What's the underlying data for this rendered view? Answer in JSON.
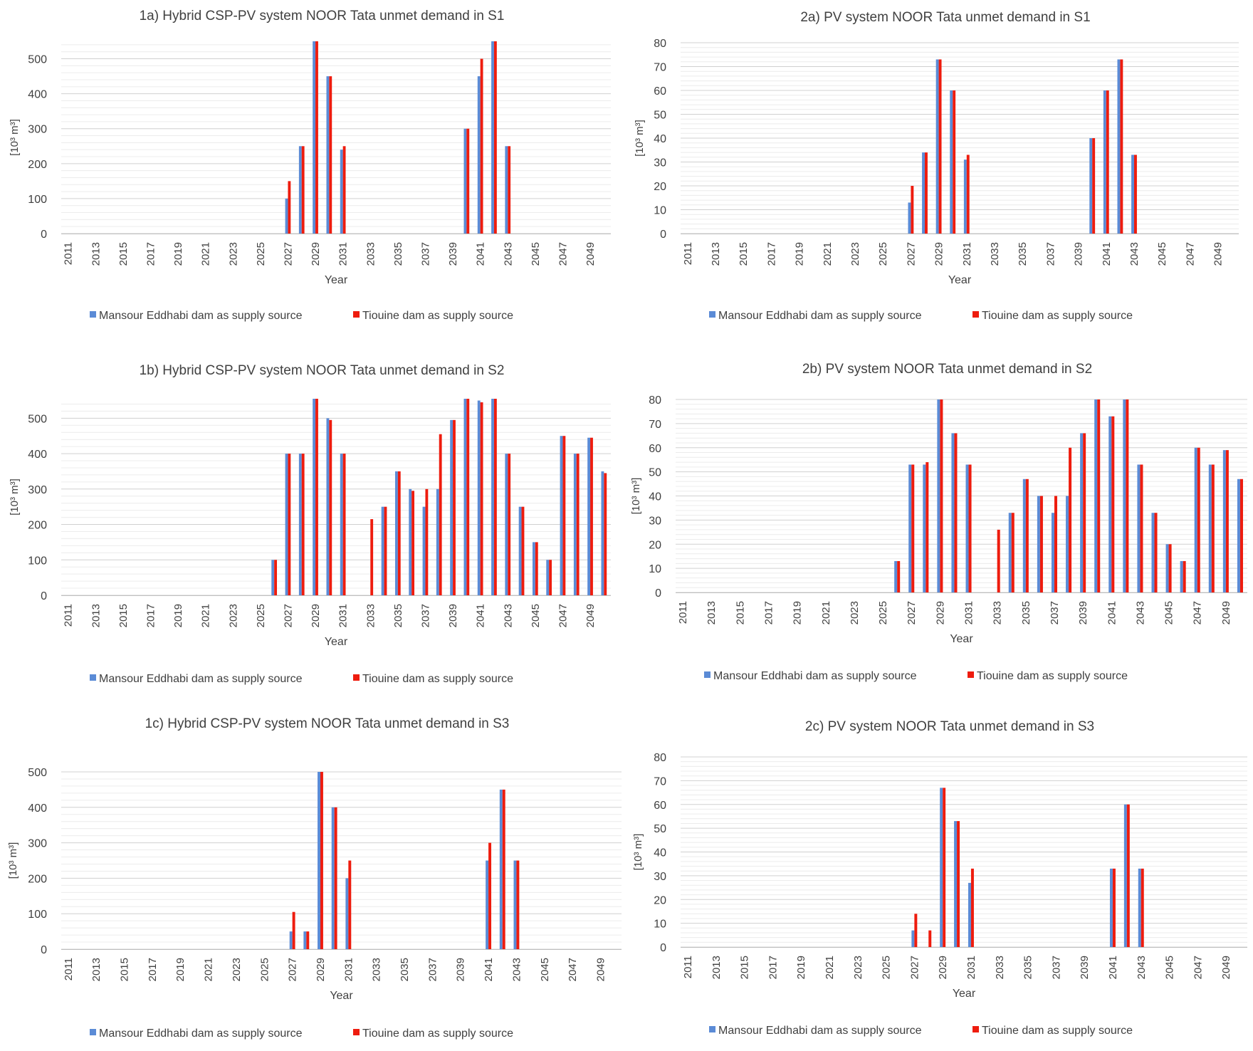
{
  "colors": {
    "mansour": "#5b8bd6",
    "tiouine": "#ee1c0e",
    "grid": "#d9d9d9",
    "text": "#404040"
  },
  "shared": {
    "xlabel": "Year",
    "ylabel": "[10³ m³]",
    "legend": [
      "Mansour Eddhabi dam as supply source",
      "Tiouine dam as supply source"
    ],
    "tick_labels": [
      "2011",
      "2013",
      "2015",
      "2017",
      "2019",
      "2021",
      "2023",
      "2025",
      "2027",
      "2029",
      "2031",
      "2033",
      "2035",
      "2037",
      "2039",
      "2041",
      "2043",
      "2045",
      "2047",
      "2049"
    ]
  },
  "chart_data": [
    {
      "id": "1a",
      "type": "bar",
      "title": "1a) Hybrid CSP-PV system NOOR Tata unmet demand in S1",
      "xlabel": "Year",
      "ylabel": "[10³ m³]",
      "ylim": [
        0,
        550
      ],
      "yticks": [
        0,
        100,
        200,
        300,
        400,
        500
      ],
      "categories_start": 2011,
      "categories_end": 2050,
      "series": [
        {
          "name": "Mansour Eddhabi dam as supply source",
          "values": {
            "2027": 100,
            "2028": 250,
            "2029": 550,
            "2030": 450,
            "2031": 240,
            "2040": 300,
            "2041": 450,
            "2042": 550,
            "2043": 250
          }
        },
        {
          "name": "Tiouine dam as supply source",
          "values": {
            "2027": 150,
            "2028": 250,
            "2029": 550,
            "2030": 450,
            "2031": 250,
            "2040": 300,
            "2041": 500,
            "2042": 550,
            "2043": 250
          }
        }
      ],
      "grid": true,
      "legend_position": "bottom"
    },
    {
      "id": "2a",
      "type": "bar",
      "title": "2a) PV system NOOR Tata unmet demand in S1",
      "xlabel": "Year",
      "ylabel": "[10³ m³]",
      "ylim": [
        0,
        80
      ],
      "yticks": [
        0,
        10,
        20,
        30,
        40,
        50,
        60,
        70,
        80
      ],
      "categories_start": 2011,
      "categories_end": 2050,
      "series": [
        {
          "name": "Mansour Eddhabi dam as supply source",
          "values": {
            "2027": 13,
            "2028": 34,
            "2029": 73,
            "2030": 60,
            "2031": 31,
            "2040": 40,
            "2041": 60,
            "2042": 73,
            "2043": 33
          }
        },
        {
          "name": "Tiouine dam as supply source",
          "values": {
            "2027": 20,
            "2028": 34,
            "2029": 73,
            "2030": 60,
            "2031": 33,
            "2040": 40,
            "2041": 60,
            "2042": 73,
            "2043": 33
          }
        }
      ],
      "grid": true,
      "legend_position": "bottom"
    },
    {
      "id": "1b",
      "type": "bar",
      "title": "1b) Hybrid CSP-PV system NOOR Tata unmet demand in S2",
      "xlabel": "Year",
      "ylabel": "[10³ m³]",
      "ylim": [
        0,
        555
      ],
      "yticks": [
        0,
        100,
        200,
        300,
        400,
        500
      ],
      "categories_start": 2011,
      "categories_end": 2050,
      "series": [
        {
          "name": "Mansour Eddhabi dam as supply source",
          "values": {
            "2026": 100,
            "2027": 400,
            "2028": 400,
            "2029": 555,
            "2030": 500,
            "2031": 400,
            "2034": 250,
            "2035": 350,
            "2036": 300,
            "2037": 250,
            "2038": 300,
            "2039": 495,
            "2040": 555,
            "2041": 550,
            "2042": 555,
            "2043": 400,
            "2044": 250,
            "2045": 150,
            "2046": 100,
            "2047": 450,
            "2048": 400,
            "2049": 445,
            "2050": 350
          }
        },
        {
          "name": "Tiouine dam as supply source",
          "values": {
            "2026": 100,
            "2027": 400,
            "2028": 400,
            "2029": 555,
            "2030": 495,
            "2031": 400,
            "2033": 215,
            "2034": 250,
            "2035": 350,
            "2036": 295,
            "2037": 300,
            "2038": 455,
            "2039": 495,
            "2040": 555,
            "2041": 545,
            "2042": 555,
            "2043": 400,
            "2044": 250,
            "2045": 150,
            "2046": 100,
            "2047": 450,
            "2048": 400,
            "2049": 445,
            "2050": 345
          }
        }
      ],
      "grid": true,
      "legend_position": "bottom"
    },
    {
      "id": "2b",
      "type": "bar",
      "title": "2b) PV system NOOR Tata unmet demand in S2",
      "xlabel": "Year",
      "ylabel": "[10³ m³]",
      "ylim": [
        0,
        80
      ],
      "yticks": [
        0,
        10,
        20,
        30,
        40,
        50,
        60,
        70,
        80
      ],
      "categories_start": 2011,
      "categories_end": 2050,
      "series": [
        {
          "name": "Mansour Eddhabi dam as supply source",
          "values": {
            "2026": 13,
            "2027": 53,
            "2028": 53,
            "2029": 80,
            "2030": 66,
            "2031": 53,
            "2034": 33,
            "2035": 47,
            "2036": 40,
            "2037": 33,
            "2038": 40,
            "2039": 66,
            "2040": 80,
            "2041": 73,
            "2042": 80,
            "2043": 53,
            "2044": 33,
            "2045": 20,
            "2046": 13,
            "2047": 60,
            "2048": 53,
            "2049": 59,
            "2050": 47
          }
        },
        {
          "name": "Tiouine dam as supply source",
          "values": {
            "2026": 13,
            "2027": 53,
            "2028": 54,
            "2029": 80,
            "2030": 66,
            "2031": 53,
            "2033": 26,
            "2034": 33,
            "2035": 47,
            "2036": 40,
            "2037": 40,
            "2038": 60,
            "2039": 66,
            "2040": 80,
            "2041": 73,
            "2042": 80,
            "2043": 53,
            "2044": 33,
            "2045": 20,
            "2046": 13,
            "2047": 60,
            "2048": 53,
            "2049": 59,
            "2050": 47
          }
        }
      ],
      "grid": true,
      "legend_position": "bottom"
    },
    {
      "id": "1c",
      "type": "bar",
      "title": "1c) Hybrid CSP-PV system NOOR Tata unmet demand in S3",
      "xlabel": "Year",
      "ylabel": "[10³ m³]",
      "ylim": [
        0,
        500
      ],
      "yticks": [
        0,
        100,
        200,
        300,
        400,
        500
      ],
      "categories_start": 2011,
      "categories_end": 2050,
      "series": [
        {
          "name": "Mansour Eddhabi dam as supply source",
          "values": {
            "2027": 50,
            "2028": 50,
            "2029": 500,
            "2030": 400,
            "2031": 200,
            "2041": 250,
            "2042": 450,
            "2043": 250
          }
        },
        {
          "name": "Tiouine dam as supply source",
          "values": {
            "2027": 105,
            "2028": 50,
            "2029": 500,
            "2030": 400,
            "2031": 250,
            "2041": 300,
            "2042": 450,
            "2043": 250
          }
        }
      ],
      "grid": true,
      "legend_position": "bottom"
    },
    {
      "id": "2c",
      "type": "bar",
      "title": "2c) PV system NOOR Tata unmet demand in S3",
      "xlabel": "Year",
      "ylabel": "[10³ m³]",
      "ylim": [
        0,
        80
      ],
      "yticks": [
        0,
        10,
        20,
        30,
        40,
        50,
        60,
        70,
        80
      ],
      "categories_start": 2011,
      "categories_end": 2050,
      "series": [
        {
          "name": "Mansour Eddhabi dam as supply source",
          "values": {
            "2027": 7,
            "2029": 67,
            "2030": 53,
            "2031": 27,
            "2041": 33,
            "2042": 60,
            "2043": 33
          }
        },
        {
          "name": "Tiouine dam as supply source",
          "values": {
            "2027": 14,
            "2028": 7,
            "2029": 67,
            "2030": 53,
            "2031": 33,
            "2041": 33,
            "2042": 60,
            "2043": 33
          }
        }
      ],
      "grid": true,
      "legend_position": "bottom"
    }
  ]
}
